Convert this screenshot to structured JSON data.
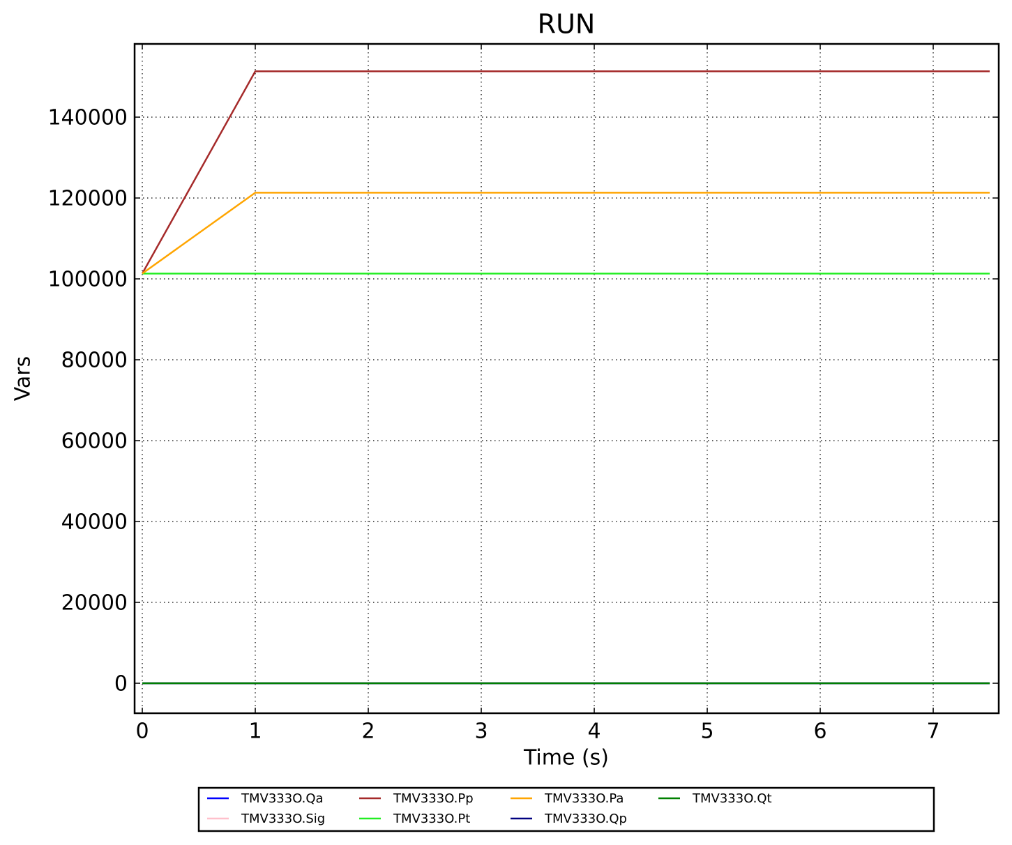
{
  "chart_data": {
    "type": "line",
    "title": "RUN",
    "xlabel": "Time (s)",
    "ylabel": "Vars",
    "x": [
      0,
      1,
      7.5
    ],
    "series": [
      {
        "name": "TMV333O.Qa",
        "color": "#0000ff",
        "values": [
          0,
          0,
          0
        ]
      },
      {
        "name": "TMV333O.Sig",
        "color": "#ffc0cb",
        "values": [
          0,
          0,
          0
        ]
      },
      {
        "name": "TMV333O.Pp",
        "color": "#a52a2a",
        "values": [
          101325,
          151325,
          151325
        ]
      },
      {
        "name": "TMV333O.Pt",
        "color": "#22ee22",
        "values": [
          101325,
          101325,
          101325
        ]
      },
      {
        "name": "TMV333O.Pa",
        "color": "#ffa500",
        "values": [
          101325,
          121325,
          121325
        ]
      },
      {
        "name": "TMV333O.Qp",
        "color": "#000080",
        "values": [
          0,
          0,
          0
        ]
      },
      {
        "name": "TMV333O.Qt",
        "color": "#008000",
        "values": [
          0,
          0,
          0
        ]
      }
    ],
    "xlim": [
      -0.068,
      7.58
    ],
    "xticks": [
      0,
      1,
      2,
      3,
      4,
      5,
      6,
      7
    ],
    "ylim": [
      -7414,
      158103
    ],
    "yticks": [
      0,
      20000,
      40000,
      60000,
      80000,
      100000,
      120000,
      140000
    ],
    "grid": true,
    "legend": "below",
    "legend_columns": 5
  }
}
